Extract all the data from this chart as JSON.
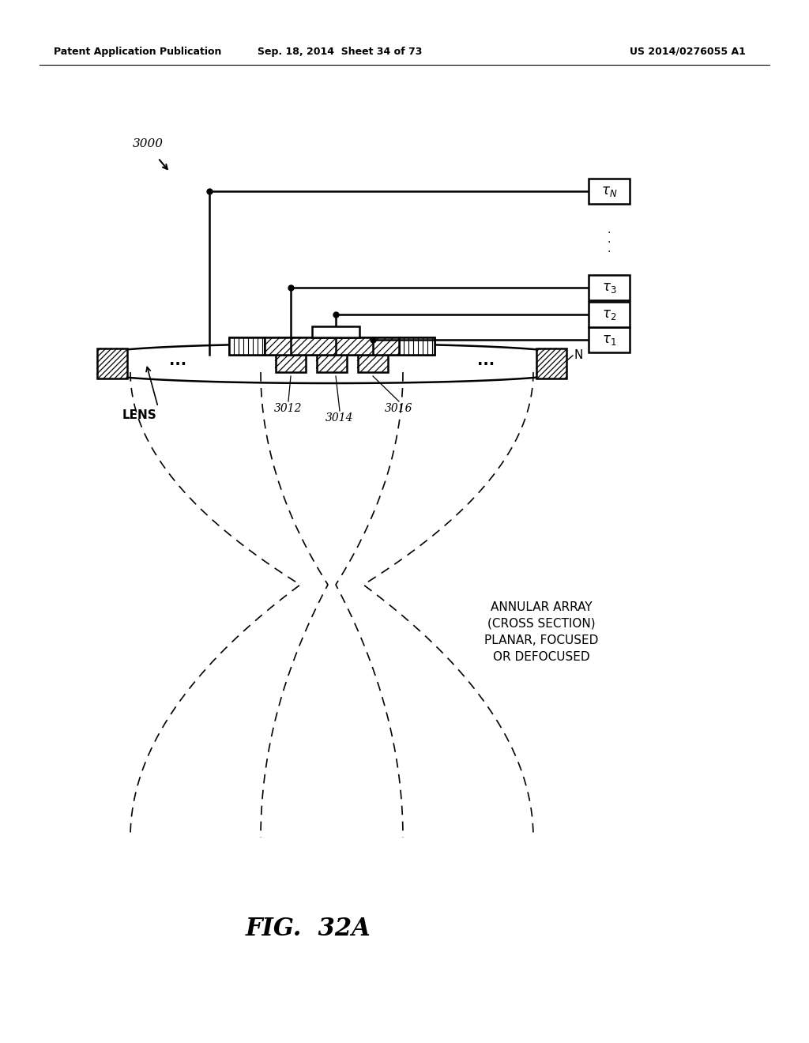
{
  "header_left": "Patent Application Publication",
  "header_mid": "Sep. 18, 2014  Sheet 34 of 73",
  "header_right": "US 2014/0276055 A1",
  "fig_label": "FIG.  32A",
  "label_3000": "3000",
  "label_N": "N",
  "label_LENS": "LENS",
  "label_3012": "3012",
  "label_3014": "3014",
  "label_3016": "3016",
  "tau_texts": [
    "$\\tau_1$",
    "$\\tau_2$",
    "$\\tau_3$",
    "$\\tau_N$"
  ],
  "annotation": "ANNULAR ARRAY\n(CROSS SECTION)\nPLANAR, FOCUSED\nOR DEFOCUSED",
  "bg_color": "#ffffff",
  "line_color": "#000000"
}
